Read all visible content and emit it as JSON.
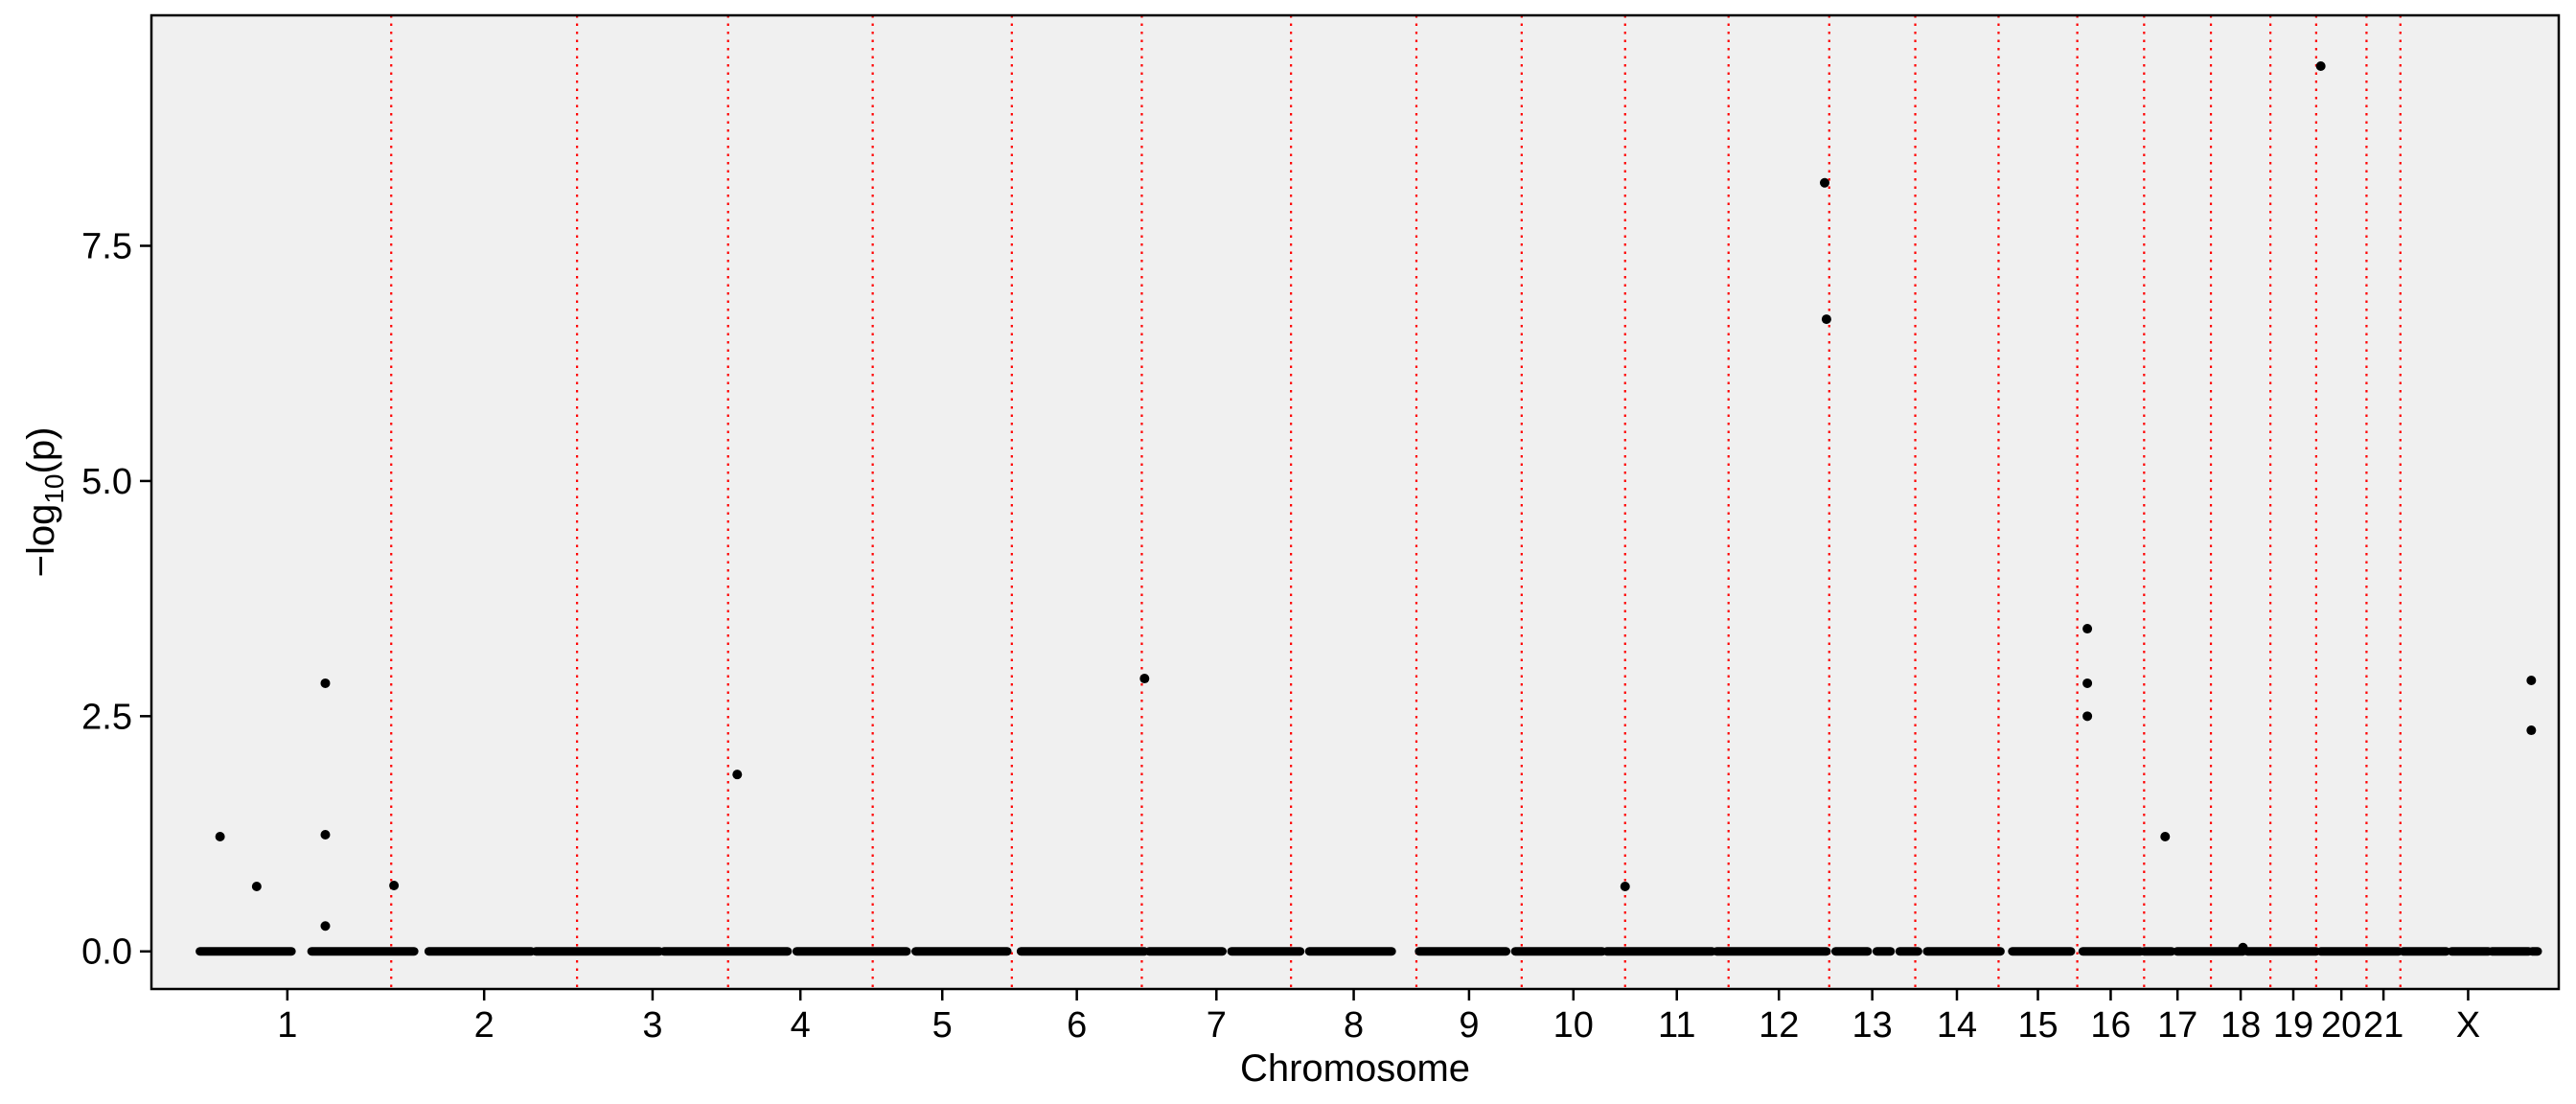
{
  "chart_data": {
    "type": "scatter",
    "title": "",
    "xlabel": "Chromosome",
    "ylabel": "−log₁₀(p)",
    "ylabel_parts": {
      "prefix": "−log",
      "subscript": "10",
      "suffix": "(p)"
    },
    "ylim": [
      -0.4,
      9.95
    ],
    "yticks": [
      0.0,
      2.5,
      5.0,
      7.5
    ],
    "ytick_labels": [
      "0.0",
      "2.5",
      "5.0",
      "7.5"
    ],
    "grid": false,
    "legend": "none",
    "chromosomes": [
      {
        "label": "1",
        "start": 0.0,
        "end": 2.27
      },
      {
        "label": "2",
        "start": 2.27,
        "end": 4.3
      },
      {
        "label": "3",
        "start": 4.3,
        "end": 5.95
      },
      {
        "label": "4",
        "start": 5.95,
        "end": 7.53
      },
      {
        "label": "5",
        "start": 7.53,
        "end": 9.05
      },
      {
        "label": "6",
        "start": 9.05,
        "end": 10.47
      },
      {
        "label": "7",
        "start": 10.47,
        "end": 12.1
      },
      {
        "label": "8",
        "start": 12.1,
        "end": 13.47
      },
      {
        "label": "9",
        "start": 13.47,
        "end": 14.62
      },
      {
        "label": "10",
        "start": 14.62,
        "end": 15.75
      },
      {
        "label": "11",
        "start": 15.75,
        "end": 16.88
      },
      {
        "label": "12",
        "start": 16.88,
        "end": 17.98
      },
      {
        "label": "13",
        "start": 17.98,
        "end": 18.92
      },
      {
        "label": "14",
        "start": 18.92,
        "end": 19.83
      },
      {
        "label": "15",
        "start": 19.83,
        "end": 20.69
      },
      {
        "label": "16",
        "start": 20.69,
        "end": 21.42
      },
      {
        "label": "17",
        "start": 21.42,
        "end": 22.15
      },
      {
        "label": "18",
        "start": 22.15,
        "end": 22.8
      },
      {
        "label": "19",
        "start": 22.8,
        "end": 23.3
      },
      {
        "label": "20",
        "start": 23.3,
        "end": 23.85
      },
      {
        "label": "21",
        "start": 23.85,
        "end": 24.22
      },
      {
        "label": "X",
        "start": 24.22,
        "end": 25.7
      }
    ],
    "xlim": [
      -0.35,
      25.95
    ],
    "baseline": [
      [
        0.18,
        1.18
      ],
      [
        1.4,
        2.52
      ],
      [
        2.68,
        3.8
      ],
      [
        3.85,
        5.2
      ],
      [
        5.25,
        6.6
      ],
      [
        6.7,
        7.9
      ],
      [
        8.0,
        9.0
      ],
      [
        9.15,
        10.5
      ],
      [
        10.55,
        11.35
      ],
      [
        11.45,
        12.2
      ],
      [
        12.3,
        13.2
      ],
      [
        13.5,
        14.45
      ],
      [
        14.55,
        15.5
      ],
      [
        15.55,
        16.7
      ],
      [
        16.75,
        17.95
      ],
      [
        18.05,
        18.4
      ],
      [
        18.5,
        18.65
      ],
      [
        18.75,
        18.95
      ],
      [
        19.05,
        19.85
      ],
      [
        19.98,
        20.62
      ],
      [
        20.75,
        21.38
      ],
      [
        21.42,
        21.72
      ],
      [
        21.78,
        22.5
      ],
      [
        22.55,
        23.3
      ],
      [
        23.35,
        24.2
      ],
      [
        24.25,
        24.72
      ],
      [
        24.78,
        25.18
      ],
      [
        25.22,
        25.62
      ],
      [
        25.66,
        25.72
      ]
    ],
    "points": [
      {
        "x": 0.4,
        "y": 1.22
      },
      {
        "x": 0.8,
        "y": 0.69
      },
      {
        "x": 1.55,
        "y": 2.85
      },
      {
        "x": 1.55,
        "y": 1.24
      },
      {
        "x": 1.55,
        "y": 0.27
      },
      {
        "x": 2.3,
        "y": 0.7
      },
      {
        "x": 6.05,
        "y": 1.88
      },
      {
        "x": 10.5,
        "y": 2.9
      },
      {
        "x": 15.75,
        "y": 0.69
      },
      {
        "x": 17.93,
        "y": 8.17
      },
      {
        "x": 17.95,
        "y": 6.72
      },
      {
        "x": 20.8,
        "y": 3.43
      },
      {
        "x": 20.8,
        "y": 2.85
      },
      {
        "x": 20.8,
        "y": 2.5
      },
      {
        "x": 21.65,
        "y": 1.22
      },
      {
        "x": 22.5,
        "y": 0.04
      },
      {
        "x": 23.35,
        "y": 9.41
      },
      {
        "x": 25.65,
        "y": 2.88
      },
      {
        "x": 25.65,
        "y": 2.35
      }
    ],
    "colors": {
      "panel": "#f0f0f0",
      "points": "#000000",
      "boundary": "#ff0000",
      "frame": "#000000"
    }
  }
}
